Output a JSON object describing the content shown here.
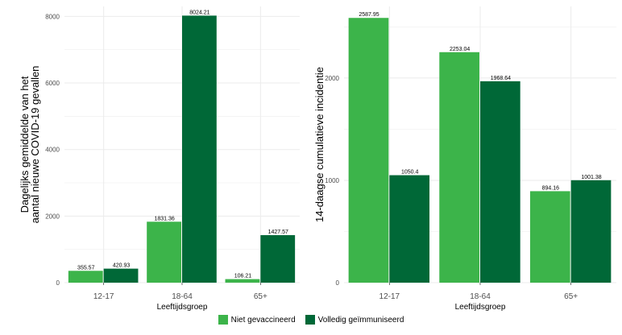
{
  "colors": {
    "niet_gevaccineerd": "#3cb44a",
    "volledig_geimmuniseerd": "#006837",
    "grid": "#ebebeb"
  },
  "legend": {
    "items": [
      {
        "label": "Niet gevaccineerd",
        "color": "#3cb44a"
      },
      {
        "label": "Volledig geïmmuniseerd",
        "color": "#006837"
      }
    ]
  },
  "chart_data": [
    {
      "type": "bar",
      "title": "",
      "xlabel": "Leeftijdsgroep",
      "ylabel_lines": [
        "Dagelijks gemiddelde van het",
        "aantal nieuwe COVID-19 gevallen"
      ],
      "categories": [
        "12-17",
        "18-64",
        "65+"
      ],
      "ylim": [
        0,
        8300
      ],
      "yticks": [
        0,
        2000,
        4000,
        6000,
        8000
      ],
      "grid": true,
      "legend_position": "bottom",
      "series": [
        {
          "name": "Niet gevaccineerd",
          "values": [
            355.57,
            1831.36,
            106.21
          ],
          "labels": [
            "355.57",
            "1831.36",
            "106.21"
          ]
        },
        {
          "name": "Volledig geïmmuniseerd",
          "values": [
            420.93,
            8024.21,
            1427.57
          ],
          "labels": [
            "420.93",
            "8024.21",
            "1427.57"
          ]
        }
      ]
    },
    {
      "type": "bar",
      "title": "",
      "xlabel": "Leeftijdsgroep",
      "ylabel_lines": [
        "14-daagse cumulatieve incidentie"
      ],
      "categories": [
        "12-17",
        "18-64",
        "65+"
      ],
      "ylim": [
        0,
        2700
      ],
      "yticks": [
        0,
        1000,
        2000
      ],
      "grid": true,
      "legend_position": "bottom",
      "series": [
        {
          "name": "Niet gevaccineerd",
          "values": [
            2587.95,
            2253.04,
            894.16
          ],
          "labels": [
            "2587.95",
            "2253.04",
            "894.16"
          ]
        },
        {
          "name": "Volledig geïmmuniseerd",
          "values": [
            1050.4,
            1968.64,
            1001.38
          ],
          "labels": [
            "1050.4",
            "1968.64",
            "1001.38"
          ]
        }
      ]
    }
  ]
}
